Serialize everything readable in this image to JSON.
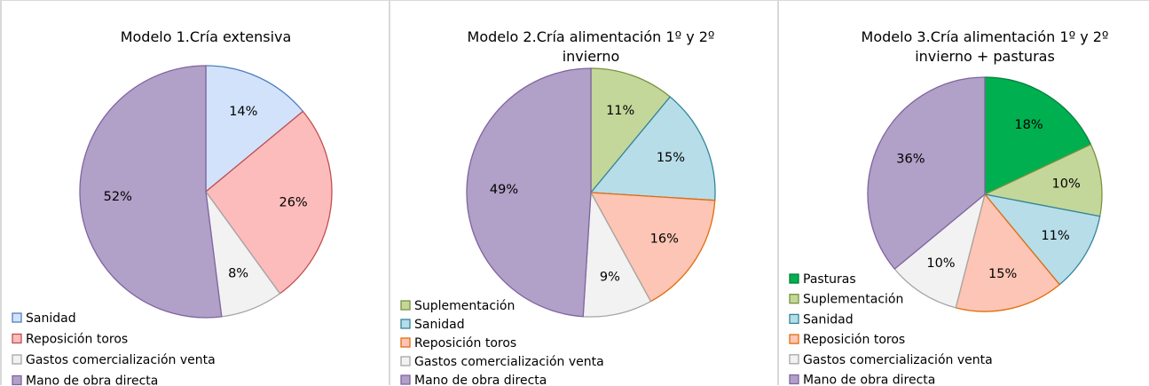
{
  "chart_data": [
    {
      "type": "pie",
      "title": "Modelo 1.Cría extensiva",
      "categories": [
        "Sanidad",
        "Reposición toros",
        "Gastos comercialización venta",
        "Mano de obra directa"
      ],
      "values": [
        14,
        26,
        8,
        52
      ],
      "value_labels": [
        "14%",
        "26%",
        "8%",
        "52%"
      ],
      "colors": [
        "#d3e2fb",
        "#fdbcbc",
        "#f2f2f2",
        "#b1a0c7"
      ],
      "edgecolors": [
        "#4f81bd",
        "#c0504d",
        "#a6a6a6",
        "#8064a2"
      ]
    },
    {
      "type": "pie",
      "title": "Modelo 2.Cría alimentación 1º y 2º invierno",
      "categories": [
        "Suplementación",
        "Sanidad",
        "Reposición toros",
        "Gastos comercialización venta",
        "Mano de obra directa"
      ],
      "values": [
        11,
        15,
        16,
        9,
        49
      ],
      "value_labels": [
        "11%",
        "15%",
        "16%",
        "9%",
        "49%"
      ],
      "colors": [
        "#c4d79b",
        "#b7dde8",
        "#fcc5b5",
        "#f2f2f2",
        "#b1a0c7"
      ],
      "edgecolors": [
        "#77933c",
        "#31859c",
        "#e46c0a",
        "#a6a6a6",
        "#8064a2"
      ]
    },
    {
      "type": "pie",
      "title": "Modelo 3.Cría alimentación 1º y 2º invierno + pasturas",
      "categories": [
        "Pasturas",
        "Suplementación",
        "Sanidad",
        "Reposición toros",
        "Gastos comercialización venta",
        "Mano de obra directa"
      ],
      "values": [
        18,
        10,
        11,
        15,
        10,
        36
      ],
      "value_labels": [
        "18%",
        "10%",
        "11%",
        "15%",
        "10%",
        "36%"
      ],
      "colors": [
        "#00b050",
        "#c4d79b",
        "#b7dde8",
        "#fcc5b5",
        "#f2f2f2",
        "#b1a0c7"
      ],
      "edgecolors": [
        "#00803a",
        "#77933c",
        "#31859c",
        "#e46c0a",
        "#a6a6a6",
        "#8064a2"
      ]
    }
  ]
}
